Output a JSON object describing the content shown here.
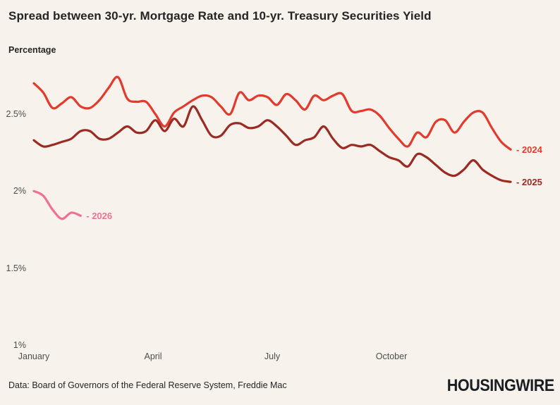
{
  "chart_data": {
    "type": "line",
    "title": "Spread between 30-yr. Mortgage Rate and 10-yr. Treasury Securities Yield",
    "ylabel": "Percentage",
    "ylim": [
      1.0,
      2.8
    ],
    "grid": false,
    "legend_position": "line-end-labels",
    "x_axis": {
      "ticks": [
        {
          "label": "January",
          "month": 0
        },
        {
          "label": "April",
          "month": 3
        },
        {
          "label": "July",
          "month": 6
        },
        {
          "label": "October",
          "month": 9
        }
      ]
    },
    "y_axis": {
      "ticks": [
        {
          "label": "2.5%",
          "value": 2.5
        },
        {
          "label": "2%",
          "value": 2.0
        },
        {
          "label": "1.5%",
          "value": 1.5
        },
        {
          "label": "1%",
          "value": 1.0
        }
      ]
    },
    "series": [
      {
        "name": "2024",
        "end_label": "- 2024",
        "color": "#E23B2D",
        "values": [
          2.7,
          2.64,
          2.54,
          2.57,
          2.61,
          2.55,
          2.54,
          2.59,
          2.67,
          2.74,
          2.6,
          2.58,
          2.58,
          2.5,
          2.42,
          2.51,
          2.55,
          2.59,
          2.62,
          2.61,
          2.55,
          2.5,
          2.64,
          2.59,
          2.62,
          2.61,
          2.56,
          2.63,
          2.59,
          2.53,
          2.62,
          2.59,
          2.62,
          2.63,
          2.52,
          2.52,
          2.53,
          2.49,
          2.41,
          2.34,
          2.29,
          2.38,
          2.35,
          2.45,
          2.46,
          2.38,
          2.45,
          2.51,
          2.51,
          2.41,
          2.32,
          2.27
        ]
      },
      {
        "name": "2025",
        "end_label": "- 2025",
        "color": "#9B2B22",
        "values": [
          2.33,
          2.29,
          2.3,
          2.32,
          2.34,
          2.39,
          2.39,
          2.34,
          2.34,
          2.38,
          2.42,
          2.38,
          2.39,
          2.46,
          2.39,
          2.47,
          2.42,
          2.55,
          2.46,
          2.36,
          2.36,
          2.43,
          2.44,
          2.41,
          2.42,
          2.46,
          2.42,
          2.36,
          2.3,
          2.33,
          2.35,
          2.42,
          2.34,
          2.28,
          2.3,
          2.29,
          2.3,
          2.26,
          2.22,
          2.2,
          2.16,
          2.24,
          2.22,
          2.17,
          2.12,
          2.1,
          2.14,
          2.2,
          2.14,
          2.1,
          2.07,
          2.06
        ]
      },
      {
        "name": "2026",
        "end_label": "- 2026",
        "color": "#F2708F",
        "values": [
          2.0,
          1.97,
          1.88,
          1.82,
          1.86,
          1.84
        ]
      }
    ]
  },
  "footer": {
    "source": "Data: Board of Governors of the Federal Reserve System, Freddie Mac",
    "brand": "HOUSINGWIRE"
  },
  "colors": {
    "background": "#F7F3EC",
    "text": "#242424",
    "axis_text": "#4D4D4D",
    "brand": "#1A1D21"
  }
}
